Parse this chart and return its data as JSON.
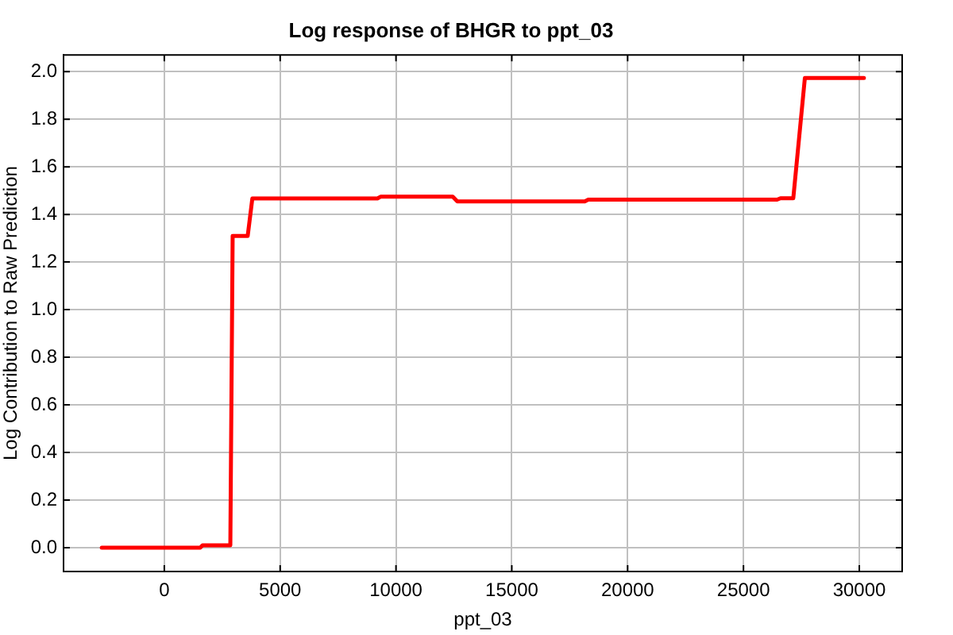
{
  "chart_data": {
    "type": "line",
    "title": "Log response of BHGR to ppt_03",
    "xlabel": "ppt_03",
    "ylabel": "Log Contribution to Raw Prediction",
    "x": [
      -2700,
      1550,
      1650,
      2850,
      2950,
      3600,
      3800,
      9200,
      9350,
      12450,
      12650,
      18150,
      18300,
      26450,
      26600,
      27150,
      27650,
      30200
    ],
    "series": [
      {
        "color": "#ff0000",
        "values": [
          0,
          0,
          0.01,
          0.01,
          1.31,
          1.31,
          1.467,
          1.467,
          1.475,
          1.475,
          1.455,
          1.455,
          1.462,
          1.462,
          1.468,
          1.468,
          1.973,
          1.973
        ]
      }
    ],
    "xlim": [
      -4350,
      31850
    ],
    "xticks": [
      0,
      5000,
      10000,
      15000,
      20000,
      25000,
      30000
    ],
    "ylim": [
      -0.1,
      2.07
    ],
    "yticks": [
      {
        "value": 0,
        "label": "0.0"
      },
      {
        "value": 0.2,
        "label": "0.2"
      },
      {
        "value": 0.4,
        "label": "0.4"
      },
      {
        "value": 0.6,
        "label": "0.6"
      },
      {
        "value": 0.8,
        "label": "0.8"
      },
      {
        "value": 1,
        "label": "1.0"
      },
      {
        "value": 1.2,
        "label": "1.2"
      },
      {
        "value": 1.4,
        "label": "1.4"
      },
      {
        "value": 1.6,
        "label": "1.6"
      },
      {
        "value": 1.8,
        "label": "1.8"
      },
      {
        "value": 2,
        "label": "2.0"
      }
    ],
    "grid": true,
    "legend": false,
    "marker": "none",
    "line_style": "solid"
  }
}
